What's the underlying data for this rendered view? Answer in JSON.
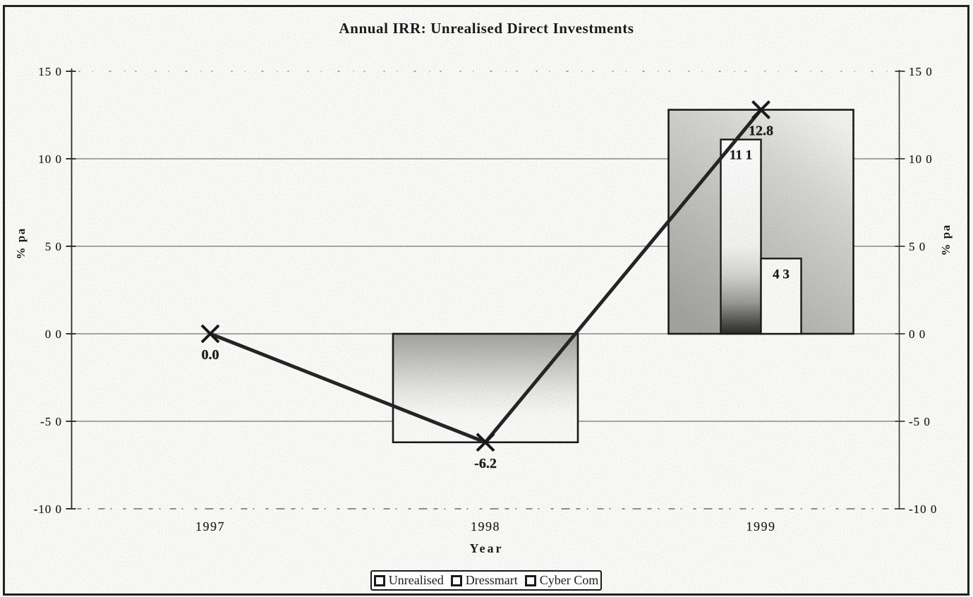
{
  "title": "Annual IRR: Unrealised Direct Investments",
  "chart_data": {
    "type": "combo",
    "title": "Annual IRR: Unrealised Direct Investments",
    "categories": [
      "1997",
      "1998",
      "1999"
    ],
    "series": [
      {
        "name": "Unrealised",
        "type": "bar",
        "values": [
          0.0,
          -6.2,
          12.8
        ]
      },
      {
        "name": "Dressmart",
        "type": "bar",
        "values": [
          null,
          null,
          11.1
        ]
      },
      {
        "name": "Cyber Com",
        "type": "bar",
        "values": [
          null,
          null,
          4.3
        ]
      },
      {
        "name": "Unrealised trend",
        "type": "line",
        "marker": "x",
        "values": [
          0.0,
          -6.2,
          12.8
        ]
      }
    ],
    "point_labels": [
      {
        "text": "0.0",
        "category": 0,
        "value": 0.0,
        "pos": "below",
        "bold": true
      },
      {
        "text": "-6.2",
        "category": 1,
        "value": -6.2,
        "pos": "below",
        "bold": true
      },
      {
        "text": "12.8",
        "category": 2,
        "value": 12.8,
        "pos": "below",
        "bold": true
      },
      {
        "text": "11 1",
        "category": 2,
        "value": 11.1,
        "pos": "inside-top",
        "bar": "Dressmart",
        "bold": false
      },
      {
        "text": "4 3",
        "category": 2,
        "value": 4.3,
        "pos": "inside-top",
        "bar": "Cyber Com",
        "bold": false
      }
    ],
    "y_axis": {
      "title_left": "% pa",
      "title_right": "% pa",
      "range": [
        -10,
        15
      ],
      "ticks": [
        {
          "label": "15 0",
          "value": 15,
          "grid": "dotted-sparse"
        },
        {
          "label": "10 0",
          "value": 10,
          "grid": "solid"
        },
        {
          "label": "5 0",
          "value": 5,
          "grid": "solid"
        },
        {
          "label": "0 0",
          "value": 0,
          "grid": "solid"
        },
        {
          "label": "-5 0",
          "value": -5,
          "grid": "solid"
        },
        {
          "label": "-10 0",
          "value": -10,
          "grid": "dotted-dense"
        }
      ]
    },
    "x_axis": {
      "title": "Year",
      "categories": [
        "1997",
        "1998",
        "1999"
      ]
    },
    "legend": [
      "Unrealised",
      "Dressmart",
      "Cyber Com"
    ],
    "colors": {
      "ink": "#1c1c1c",
      "bar_gray_dark": "#a5a5a2",
      "bar_gray_light": "#f4f4f2",
      "bar_dark_bottom": "#2c2c2a",
      "bar_white": "#fcfcfa"
    }
  }
}
